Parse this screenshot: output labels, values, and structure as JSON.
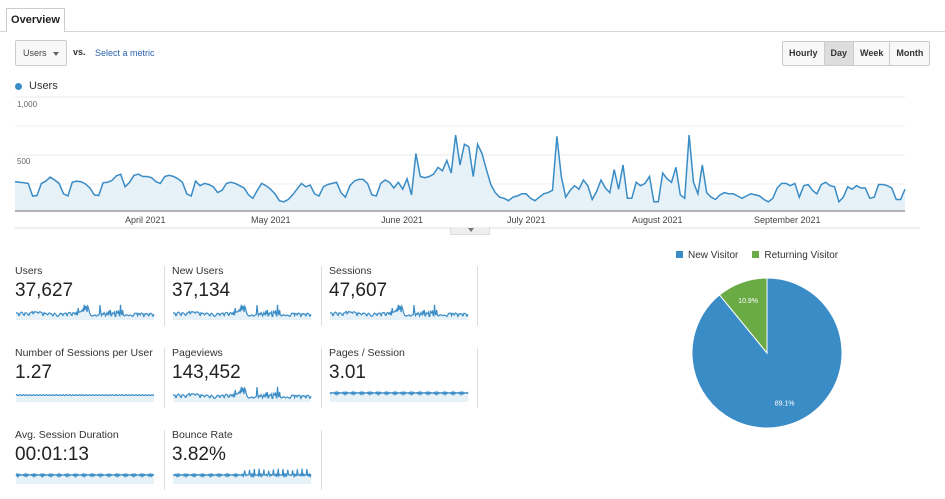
{
  "tabs": [
    {
      "label": "Overview",
      "active": true
    }
  ],
  "toolbar": {
    "metric": "Users",
    "vs": "vs.",
    "select_metric": "Select a metric",
    "granularity": [
      "Hourly",
      "Day",
      "Week",
      "Month"
    ],
    "active_granularity": "Day"
  },
  "chart_data": {
    "type": "area",
    "series": [
      {
        "name": "Users",
        "color": "#3a8cc6",
        "values": [
          255,
          250,
          245,
          240,
          130,
          135,
          240,
          260,
          295,
          270,
          240,
          150,
          130,
          250,
          260,
          255,
          235,
          200,
          140,
          135,
          245,
          250,
          265,
          305,
          320,
          210,
          250,
          310,
          320,
          300,
          300,
          290,
          255,
          240,
          300,
          310,
          300,
          280,
          250,
          150,
          130,
          260,
          220,
          240,
          230,
          210,
          160,
          180,
          240,
          250,
          240,
          220,
          200,
          140,
          110,
          180,
          240,
          220,
          190,
          150,
          90,
          80,
          100,
          140,
          190,
          240,
          210,
          225,
          150,
          130,
          210,
          230,
          240,
          250,
          160,
          120,
          220,
          260,
          275,
          275,
          240,
          140,
          130,
          240,
          270,
          250,
          200,
          250,
          190,
          280,
          140,
          500,
          300,
          290,
          300,
          320,
          380,
          350,
          440,
          330,
          660,
          400,
          580,
          560,
          300,
          580,
          500,
          360,
          230,
          160,
          120,
          110,
          90,
          120,
          130,
          150,
          150,
          110,
          90,
          120,
          150,
          160,
          180,
          650,
          300,
          120,
          180,
          220,
          190,
          270,
          220,
          100,
          170,
          270,
          200,
          160,
          360,
          190,
          400,
          110,
          110,
          250,
          220,
          240,
          300,
          80,
          80,
          330,
          280,
          250,
          380,
          140,
          110,
          660,
          250,
          150,
          400,
          160,
          120,
          100,
          140,
          160,
          150,
          150,
          130,
          110,
          130,
          150,
          140,
          130,
          100,
          80,
          110,
          200,
          240,
          240,
          220,
          240,
          120,
          220,
          230,
          180,
          150,
          230,
          250,
          220,
          210,
          80,
          120,
          210,
          190,
          220,
          200,
          200,
          110,
          120,
          230,
          230,
          220,
          200,
          100,
          100,
          190
        ]
      }
    ],
    "x_tick_labels": [
      "April 2021",
      "May 2021",
      "June 2021",
      "July 2021",
      "August 2021",
      "September 2021"
    ],
    "y_tick_labels": [
      "1,000",
      "500"
    ],
    "ylim": [
      0,
      1000
    ],
    "grid": true,
    "legend": "top-left"
  },
  "scorecards": [
    {
      "label": "Users",
      "value": "37,627"
    },
    {
      "label": "New Users",
      "value": "37,134"
    },
    {
      "label": "Sessions",
      "value": "47,607"
    },
    {
      "label": "Number of Sessions per User",
      "value": "1.27"
    },
    {
      "label": "Pageviews",
      "value": "143,452"
    },
    {
      "label": "Pages / Session",
      "value": "3.01"
    },
    {
      "label": "Avg. Session Duration",
      "value": "00:01:13"
    },
    {
      "label": "Bounce Rate",
      "value": "3.82%"
    }
  ],
  "pie": {
    "slices": [
      {
        "label": "New Visitor",
        "value": 89.1,
        "text": "89.1%",
        "color": "#3a8cc6"
      },
      {
        "label": "Returning Visitor",
        "value": 10.9,
        "text": "10.9%",
        "color": "#6aab45"
      }
    ]
  }
}
